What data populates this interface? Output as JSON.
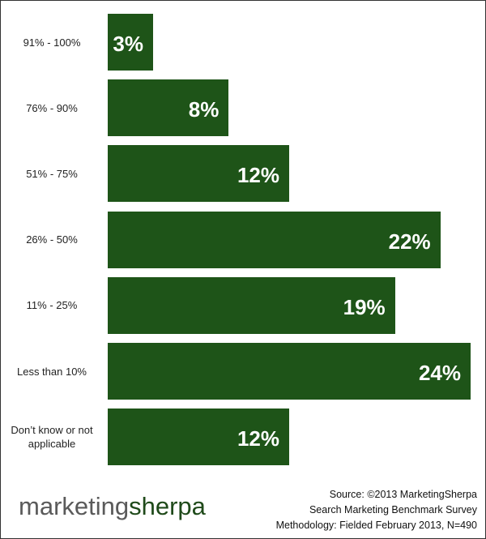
{
  "chart_data": {
    "type": "barh",
    "categories": [
      "91% - 100%",
      "76% - 90%",
      "51% - 75%",
      "26% - 50%",
      "11% - 25%",
      "Less than 10%",
      "Don’t know or not applicable"
    ],
    "values": [
      3,
      8,
      12,
      22,
      19,
      24,
      12
    ],
    "value_labels": [
      "3%",
      "8%",
      "12%",
      "22%",
      "19%",
      "24%",
      "12%"
    ],
    "color": "#1e5418"
  },
  "footer": {
    "source": [
      "Source: ©2013 MarketingSherpa",
      "Search Marketing Benchmark Survey",
      "Methodology: Fielded February 2013, N=490"
    ],
    "logo": [
      "marketing",
      "sherpa"
    ]
  }
}
